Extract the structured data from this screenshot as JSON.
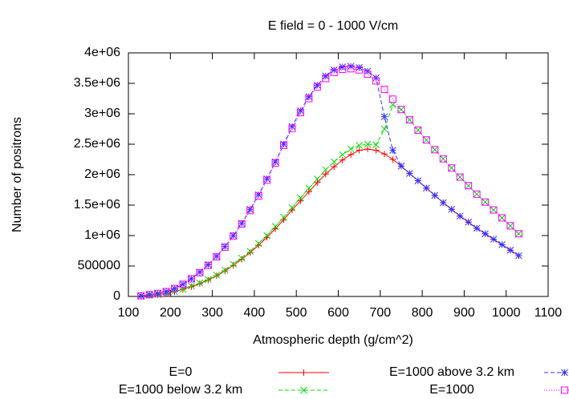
{
  "chart_data": {
    "type": "line",
    "title": "E field = 0 - 1000 V/cm",
    "x_label": "Atmospheric depth (g/cm^2)",
    "y_label": "Number of positrons",
    "x": [
      130,
      150,
      170,
      190,
      210,
      230,
      250,
      270,
      290,
      310,
      330,
      350,
      370,
      390,
      410,
      430,
      450,
      470,
      490,
      510,
      530,
      550,
      570,
      590,
      610,
      630,
      650,
      670,
      690,
      710,
      730,
      750,
      770,
      790,
      810,
      830,
      850,
      870,
      890,
      910,
      930,
      950,
      970,
      990,
      1010,
      1030
    ],
    "series": [
      {
        "name": "E=0",
        "color": "#ff0000",
        "marker": "plus",
        "dash": "solid",
        "values": [
          10000,
          20000,
          30000,
          50000,
          80000,
          120000,
          160000,
          210000,
          270000,
          340000,
          420000,
          510000,
          610000,
          720000,
          840000,
          970000,
          1110000,
          1260000,
          1420000,
          1570000,
          1720000,
          1870000,
          2010000,
          2130000,
          2240000,
          2330000,
          2400000,
          2420000,
          2400000,
          2340000,
          2250000,
          2140000,
          2020000,
          1900000,
          1780000,
          1660000,
          1540000,
          1430000,
          1320000,
          1220000,
          1120000,
          1030000,
          940000,
          850000,
          760000,
          670000
        ]
      },
      {
        "name": "E=1000 below 3.2 km",
        "color": "#00dd00",
        "marker": "cross",
        "dash": "dashed",
        "values": [
          10000,
          20000,
          30000,
          50000,
          80000,
          120000,
          170000,
          220000,
          280000,
          350000,
          430000,
          530000,
          630000,
          740000,
          870000,
          1000000,
          1150000,
          1300000,
          1460000,
          1620000,
          1780000,
          1930000,
          2080000,
          2210000,
          2330000,
          2420000,
          2480000,
          2500000,
          2490000,
          2750000,
          3150000,
          3070000,
          2900000,
          2730000,
          2570000,
          2410000,
          2260000,
          2110000,
          1960000,
          1820000,
          1680000,
          1550000,
          1420000,
          1290000,
          1160000,
          1030000
        ]
      },
      {
        "name": "E=1000 above 3.2 km",
        "color": "#3030ff",
        "marker": "star",
        "dash": "dashed",
        "values": [
          10000,
          30000,
          50000,
          80000,
          130000,
          200000,
          290000,
          400000,
          520000,
          660000,
          820000,
          1000000,
          1200000,
          1430000,
          1670000,
          1930000,
          2210000,
          2500000,
          2790000,
          3050000,
          3280000,
          3470000,
          3620000,
          3720000,
          3770000,
          3780000,
          3760000,
          3700000,
          3590000,
          2950000,
          2400000,
          2140000,
          2020000,
          1900000,
          1780000,
          1660000,
          1540000,
          1430000,
          1320000,
          1220000,
          1120000,
          1030000,
          940000,
          850000,
          760000,
          670000
        ]
      },
      {
        "name": "E=1000",
        "color": "#ff00ff",
        "marker": "square",
        "dash": "dotted",
        "values": [
          10000,
          30000,
          50000,
          80000,
          130000,
          200000,
          290000,
          390000,
          510000,
          650000,
          810000,
          990000,
          1190000,
          1410000,
          1650000,
          1910000,
          2190000,
          2480000,
          2760000,
          3020000,
          3250000,
          3440000,
          3580000,
          3680000,
          3730000,
          3740000,
          3720000,
          3650000,
          3540000,
          3400000,
          3240000,
          3070000,
          2900000,
          2730000,
          2570000,
          2410000,
          2260000,
          2110000,
          1960000,
          1820000,
          1680000,
          1550000,
          1420000,
          1290000,
          1160000,
          1030000
        ]
      }
    ],
    "xlim": [
      100,
      1100
    ],
    "xticks": [
      100,
      200,
      300,
      400,
      500,
      600,
      700,
      800,
      900,
      1000,
      1100
    ],
    "ylim": [
      0,
      4000000
    ],
    "yticks": [
      0,
      500000,
      {
        "value": 1000000,
        "label": "1e+06"
      },
      {
        "value": 1500000,
        "label": "1.5e+06"
      },
      {
        "value": 2000000,
        "label": "2e+06"
      },
      {
        "value": 2500000,
        "label": "2.5e+06"
      },
      {
        "value": 3000000,
        "label": "3e+06"
      },
      {
        "value": 3500000,
        "label": "3.5e+06"
      },
      {
        "value": 4000000,
        "label": "4e+06"
      }
    ],
    "legend": "bottom"
  }
}
